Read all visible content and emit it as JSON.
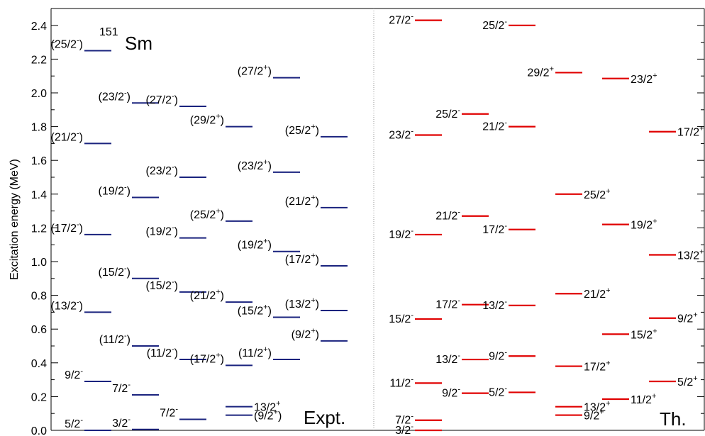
{
  "chart_data": {
    "type": "level-scheme",
    "nucleus": {
      "mass": "151",
      "symbol": "Sm"
    },
    "ylabel": "Excitation energy (MeV)",
    "ylim": [
      0.0,
      2.5
    ],
    "yticks": [
      "0.0",
      "0.2",
      "0.4",
      "0.6",
      "0.8",
      "1.0",
      "1.2",
      "1.4",
      "1.6",
      "1.8",
      "2.0",
      "2.2",
      "2.4"
    ],
    "panels": [
      {
        "label": "Expt.",
        "color": "#1a237e",
        "levels": [
          {
            "col": 1,
            "E": 0.0,
            "spin": "5/2",
            "parity": "-",
            "tentative": false,
            "side": "left"
          },
          {
            "col": 1,
            "E": 0.29,
            "spin": "9/2",
            "parity": "-",
            "tentative": false,
            "side": "left"
          },
          {
            "col": 1,
            "E": 0.7,
            "spin": "13/2",
            "parity": "-",
            "tentative": true,
            "side": "left"
          },
          {
            "col": 1,
            "E": 1.16,
            "spin": "17/2",
            "parity": "-",
            "tentative": true,
            "side": "left"
          },
          {
            "col": 1,
            "E": 1.7,
            "spin": "21/2",
            "parity": "-",
            "tentative": true,
            "side": "left"
          },
          {
            "col": 1,
            "E": 2.25,
            "spin": "25/2",
            "parity": "-",
            "tentative": true,
            "side": "left"
          },
          {
            "col": 2,
            "E": 0.005,
            "spin": "3/2",
            "parity": "-",
            "tentative": false,
            "side": "left"
          },
          {
            "col": 2,
            "E": 0.21,
            "spin": "7/2",
            "parity": "-",
            "tentative": false,
            "side": "left"
          },
          {
            "col": 2,
            "E": 0.5,
            "spin": "11/2",
            "parity": "-",
            "tentative": true,
            "side": "left"
          },
          {
            "col": 2,
            "E": 0.9,
            "spin": "15/2",
            "parity": "-",
            "tentative": true,
            "side": "left"
          },
          {
            "col": 2,
            "E": 1.38,
            "spin": "19/2",
            "parity": "-",
            "tentative": true,
            "side": "left"
          },
          {
            "col": 2,
            "E": 1.94,
            "spin": "23/2",
            "parity": "-",
            "tentative": true,
            "side": "left"
          },
          {
            "col": 3,
            "E": 0.065,
            "spin": "7/2",
            "parity": "-",
            "tentative": false,
            "side": "left"
          },
          {
            "col": 3,
            "E": 0.42,
            "spin": "11/2",
            "parity": "-",
            "tentative": true,
            "side": "left"
          },
          {
            "col": 3,
            "E": 0.82,
            "spin": "15/2",
            "parity": "-",
            "tentative": true,
            "side": "left"
          },
          {
            "col": 3,
            "E": 1.14,
            "spin": "19/2",
            "parity": "-",
            "tentative": true,
            "side": "left"
          },
          {
            "col": 3,
            "E": 1.5,
            "spin": "23/2",
            "parity": "-",
            "tentative": true,
            "side": "left"
          },
          {
            "col": 3,
            "E": 1.92,
            "spin": "27/2",
            "parity": "-",
            "tentative": true,
            "side": "left"
          },
          {
            "col": 4,
            "E": 0.09,
            "spin": "9/2",
            "parity": "+",
            "tentative": true,
            "side": "right"
          },
          {
            "col": 4,
            "E": 0.14,
            "spin": "13/2",
            "parity": "+",
            "tentative": false,
            "side": "right"
          },
          {
            "col": 4,
            "E": 0.385,
            "spin": "17/2",
            "parity": "+",
            "tentative": true,
            "side": "left"
          },
          {
            "col": 4,
            "E": 0.76,
            "spin": "21/2",
            "parity": "+",
            "tentative": true,
            "side": "left"
          },
          {
            "col": 4,
            "E": 1.24,
            "spin": "25/2",
            "parity": "+",
            "tentative": true,
            "side": "left"
          },
          {
            "col": 4,
            "E": 1.8,
            "spin": "29/2",
            "parity": "+",
            "tentative": true,
            "side": "left"
          },
          {
            "col": 5,
            "E": 0.42,
            "spin": "11/2",
            "parity": "+",
            "tentative": true,
            "side": "left"
          },
          {
            "col": 5,
            "E": 0.67,
            "spin": "15/2",
            "parity": "+",
            "tentative": true,
            "side": "left"
          },
          {
            "col": 5,
            "E": 1.06,
            "spin": "19/2",
            "parity": "+",
            "tentative": true,
            "side": "left"
          },
          {
            "col": 5,
            "E": 1.53,
            "spin": "23/2",
            "parity": "+",
            "tentative": true,
            "side": "left"
          },
          {
            "col": 5,
            "E": 2.09,
            "spin": "27/2",
            "parity": "+",
            "tentative": true,
            "side": "left"
          },
          {
            "col": 6,
            "E": 0.53,
            "spin": "9/2",
            "parity": "+",
            "tentative": true,
            "side": "left"
          },
          {
            "col": 6,
            "E": 0.71,
            "spin": "13/2",
            "parity": "+",
            "tentative": true,
            "side": "left"
          },
          {
            "col": 6,
            "E": 0.975,
            "spin": "17/2",
            "parity": "+",
            "tentative": true,
            "side": "left"
          },
          {
            "col": 6,
            "E": 1.32,
            "spin": "21/2",
            "parity": "+",
            "tentative": true,
            "side": "left"
          },
          {
            "col": 6,
            "E": 1.74,
            "spin": "25/2",
            "parity": "+",
            "tentative": true,
            "side": "left"
          }
        ]
      },
      {
        "label": "Th.",
        "color": "#e00000",
        "levels": [
          {
            "col": 1,
            "E": 0.0,
            "spin": "3/2",
            "parity": "-",
            "tentative": false,
            "side": "left"
          },
          {
            "col": 1,
            "E": 0.06,
            "spin": "7/2",
            "parity": "-",
            "tentative": false,
            "side": "left"
          },
          {
            "col": 1,
            "E": 0.28,
            "spin": "11/2",
            "parity": "-",
            "tentative": false,
            "side": "left"
          },
          {
            "col": 1,
            "E": 0.66,
            "spin": "15/2",
            "parity": "-",
            "tentative": false,
            "side": "left"
          },
          {
            "col": 1,
            "E": 1.16,
            "spin": "19/2",
            "parity": "-",
            "tentative": false,
            "side": "left"
          },
          {
            "col": 1,
            "E": 1.75,
            "spin": "23/2",
            "parity": "-",
            "tentative": false,
            "side": "left"
          },
          {
            "col": 1,
            "E": 2.43,
            "spin": "27/2",
            "parity": "-",
            "tentative": false,
            "side": "left"
          },
          {
            "col": 2,
            "E": 0.22,
            "spin": "9/2",
            "parity": "-",
            "tentative": false,
            "side": "left"
          },
          {
            "col": 2,
            "E": 0.42,
            "spin": "13/2",
            "parity": "-",
            "tentative": false,
            "side": "left"
          },
          {
            "col": 2,
            "E": 0.745,
            "spin": "17/2",
            "parity": "-",
            "tentative": false,
            "side": "left"
          },
          {
            "col": 2,
            "E": 1.27,
            "spin": "21/2",
            "parity": "-",
            "tentative": false,
            "side": "left"
          },
          {
            "col": 2,
            "E": 1.875,
            "spin": "25/2",
            "parity": "-",
            "tentative": false,
            "side": "left"
          },
          {
            "col": 3,
            "E": 0.225,
            "spin": "5/2",
            "parity": "-",
            "tentative": false,
            "side": "left"
          },
          {
            "col": 3,
            "E": 0.44,
            "spin": "9/2",
            "parity": "-",
            "tentative": false,
            "side": "left"
          },
          {
            "col": 3,
            "E": 0.74,
            "spin": "13/2",
            "parity": "-",
            "tentative": false,
            "side": "left"
          },
          {
            "col": 3,
            "E": 1.19,
            "spin": "17/2",
            "parity": "-",
            "tentative": false,
            "side": "left"
          },
          {
            "col": 3,
            "E": 1.8,
            "spin": "21/2",
            "parity": "-",
            "tentative": false,
            "side": "left"
          },
          {
            "col": 3,
            "E": 2.4,
            "spin": "25/2",
            "parity": "-",
            "tentative": false,
            "side": "left"
          },
          {
            "col": 4,
            "E": 0.09,
            "spin": "9/2",
            "parity": "+",
            "tentative": false,
            "side": "right"
          },
          {
            "col": 4,
            "E": 0.14,
            "spin": "13/2",
            "parity": "+",
            "tentative": false,
            "side": "right"
          },
          {
            "col": 4,
            "E": 0.38,
            "spin": "17/2",
            "parity": "+",
            "tentative": false,
            "side": "right"
          },
          {
            "col": 4,
            "E": 0.81,
            "spin": "21/2",
            "parity": "+",
            "tentative": false,
            "side": "right"
          },
          {
            "col": 4,
            "E": 1.4,
            "spin": "25/2",
            "parity": "+",
            "tentative": false,
            "side": "right"
          },
          {
            "col": 4,
            "E": 2.12,
            "spin": "29/2",
            "parity": "+",
            "tentative": false,
            "side": "left"
          },
          {
            "col": 5,
            "E": 0.185,
            "spin": "11/2",
            "parity": "+",
            "tentative": false,
            "side": "right"
          },
          {
            "col": 5,
            "E": 0.57,
            "spin": "15/2",
            "parity": "+",
            "tentative": false,
            "side": "right"
          },
          {
            "col": 5,
            "E": 1.22,
            "spin": "19/2",
            "parity": "+",
            "tentative": false,
            "side": "right"
          },
          {
            "col": 5,
            "E": 2.085,
            "spin": "23/2",
            "parity": "+",
            "tentative": false,
            "side": "right"
          },
          {
            "col": 6,
            "E": 0.29,
            "spin": "5/2",
            "parity": "+",
            "tentative": false,
            "side": "right"
          },
          {
            "col": 6,
            "E": 0.665,
            "spin": "9/2",
            "parity": "+",
            "tentative": false,
            "side": "right"
          },
          {
            "col": 6,
            "E": 1.04,
            "spin": "13/2",
            "parity": "+",
            "tentative": false,
            "side": "right"
          },
          {
            "col": 6,
            "E": 1.77,
            "spin": "17/2",
            "parity": "+",
            "tentative": false,
            "side": "right"
          }
        ]
      }
    ]
  }
}
